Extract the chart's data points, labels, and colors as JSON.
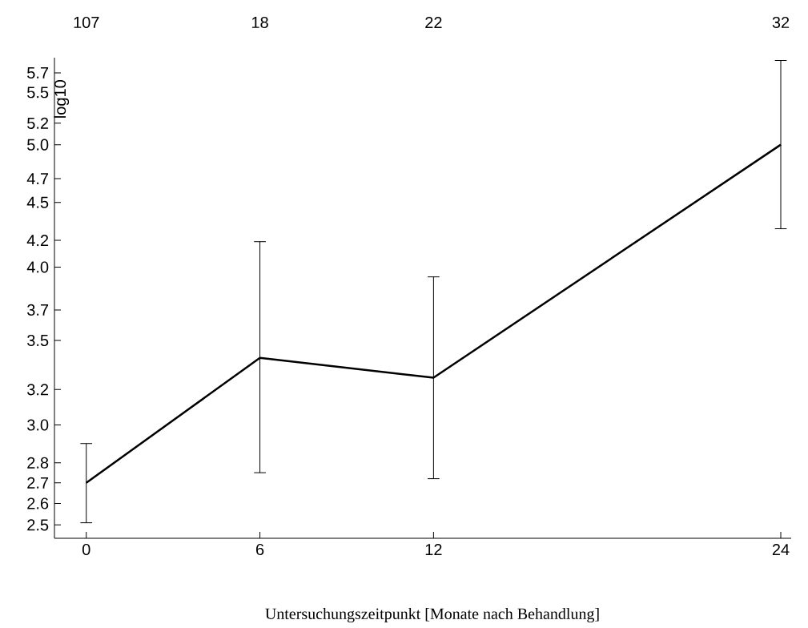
{
  "chart_data": {
    "type": "line",
    "xlabel": "Untersuchungszeitpunkt [Monate nach Behandlung]",
    "ylabel": "log10",
    "x": [
      0,
      6,
      12,
      24
    ],
    "values": [
      2.7,
      3.39,
      3.27,
      5.0
    ],
    "errors": [
      [
        2.51,
        2.9
      ],
      [
        2.75,
        4.19
      ],
      [
        2.72,
        3.93
      ],
      [
        4.29,
        5.83
      ]
    ],
    "color": "#000000",
    "marker": "none",
    "line_style": "solid",
    "log": true,
    "grid": false,
    "xlim": [
      -1.1,
      24.36
    ],
    "xticks": [
      0,
      6,
      12,
      24
    ],
    "annotations": [
      "107",
      "18",
      "22",
      "32"
    ],
    "ylim": [
      2.44,
      5.86
    ],
    "yticks": [
      2.5,
      2.6,
      2.7,
      2.8,
      {
        "value": 3,
        "label": "3.0"
      },
      3.2,
      3.5,
      3.7,
      {
        "value": 4,
        "label": "4.0"
      },
      4.2,
      4.5,
      4.7,
      {
        "value": 5,
        "label": "5.0"
      },
      5.2,
      5.5,
      5.7
    ]
  }
}
